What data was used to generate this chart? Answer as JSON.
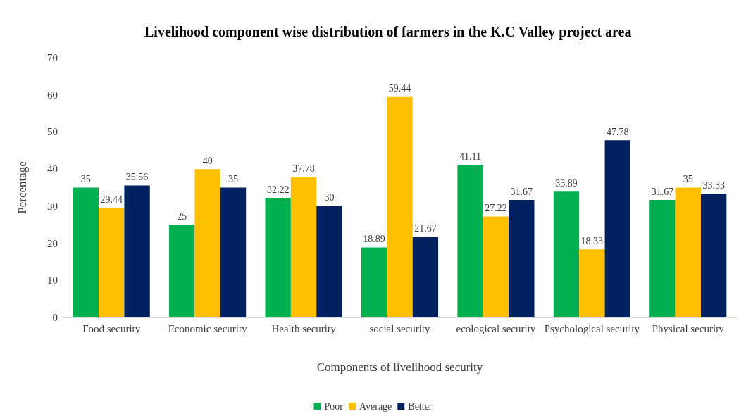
{
  "chart_data": {
    "type": "bar",
    "title": "Livelihood component wise distribution of farmers in the K.C Valley project area",
    "xlabel": "Components of livelihood security",
    "ylabel": "Percentage",
    "categories": [
      "Food security",
      "Economic security",
      "Health security",
      "social security",
      "ecological security",
      "Psychological security",
      "Physical security"
    ],
    "series": [
      {
        "name": "Poor",
        "color": "#00b050",
        "values": [
          35,
          25,
          32.22,
          18.89,
          41.11,
          33.89,
          31.67
        ]
      },
      {
        "name": "Average",
        "color": "#ffc000",
        "values": [
          29.44,
          40,
          37.78,
          59.44,
          27.22,
          18.33,
          35
        ]
      },
      {
        "name": "Better",
        "color": "#002060",
        "values": [
          35.56,
          35,
          30,
          21.67,
          31.67,
          47.78,
          33.33
        ]
      }
    ],
    "ylim": [
      0,
      70
    ],
    "yticks": [
      0,
      10,
      20,
      30,
      40,
      50,
      60,
      70
    ],
    "grid": false,
    "legend": "bottom",
    "data_labels": true
  }
}
